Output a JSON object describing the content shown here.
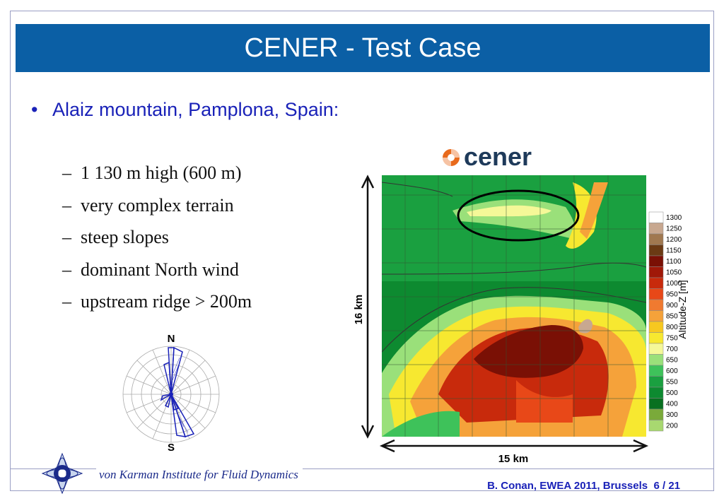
{
  "slide": {
    "title": "CENER - Test Case",
    "bullet": "Alaiz mountain, Pamplona, Spain:",
    "sub_items": [
      "1 130 m high (600 m)",
      "very complex terrain",
      "steep slopes",
      "dominant North wind",
      "upstream ridge > 200m"
    ],
    "dash": "–",
    "bullet_mark": "•"
  },
  "logo": {
    "text": "cener"
  },
  "map": {
    "height_label": "16 km",
    "width_label": "15 km",
    "colorbar_title": "Altitude-Z [m]",
    "colorbar_levels": [
      "1300",
      "1250",
      "1200",
      "1150",
      "1100",
      "1050",
      "1000",
      "950",
      "900",
      "850",
      "800",
      "750",
      "700",
      "650",
      "600",
      "550",
      "500",
      "400",
      "300",
      "200"
    ],
    "colorbar_colors": [
      "#ffffff",
      "#c8a890",
      "#a07850",
      "#6b3a14",
      "#7a1005",
      "#a01808",
      "#c82a0c",
      "#e84818",
      "#f07a30",
      "#f5a23a",
      "#f7c820",
      "#f7e830",
      "#f5f898",
      "#9ae07a",
      "#3ec25a",
      "#1aa040",
      "#0d8a30",
      "#087020",
      "#7aaa3a",
      "#a8d870"
    ]
  },
  "wind_rose": {
    "north": "N",
    "south": "S"
  },
  "footer": {
    "institute": "von Karman Institute for Fluid Dynamics",
    "citation": "B. Conan, EWEA 2011, Brussels",
    "page": "6 / 21"
  },
  "colors": {
    "title_bar": "#0b5fa5",
    "bullet_text": "#1a22b8"
  }
}
